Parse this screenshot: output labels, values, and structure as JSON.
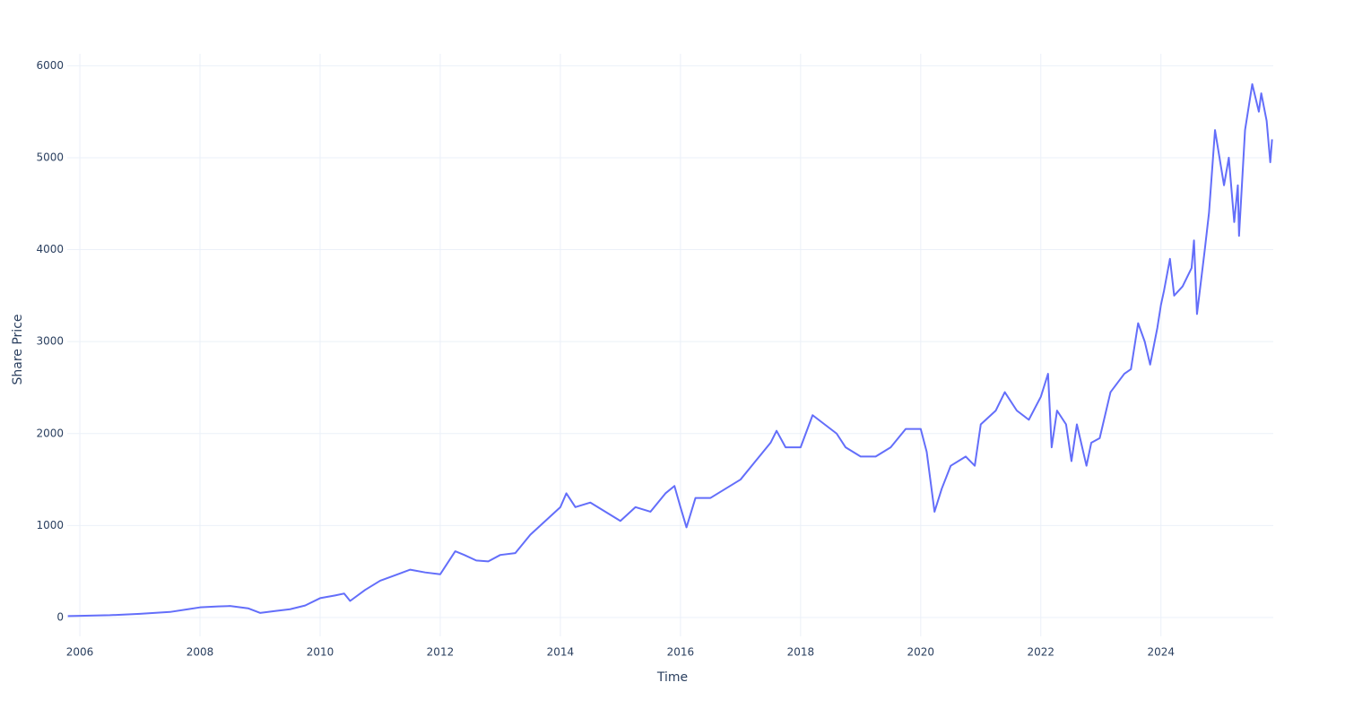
{
  "chart_data": {
    "type": "line",
    "x_label": "Time",
    "y_label": "Share Price",
    "xlim": [
      2005.79,
      2025.87
    ],
    "ylim": [
      -205,
      6130
    ],
    "xticks": [
      2006,
      2008,
      2010,
      2012,
      2014,
      2016,
      2018,
      2020,
      2022,
      2024
    ],
    "yticks": [
      0,
      1000,
      2000,
      3000,
      4000,
      5000,
      6000
    ],
    "grid": true,
    "series": [
      {
        "color": "#636efa",
        "x": [
          2005.8,
          2006.0,
          2006.5,
          2007.0,
          2007.5,
          2007.8,
          2008.0,
          2008.3,
          2008.5,
          2008.8,
          2009.0,
          2009.25,
          2009.5,
          2009.75,
          2010.0,
          2010.25,
          2010.4,
          2010.5,
          2010.75,
          2011.0,
          2011.25,
          2011.5,
          2011.75,
          2012.0,
          2012.25,
          2012.4,
          2012.6,
          2012.8,
          2013.0,
          2013.25,
          2013.5,
          2013.75,
          2014.0,
          2014.1,
          2014.25,
          2014.5,
          2014.75,
          2015.0,
          2015.25,
          2015.5,
          2015.75,
          2015.9,
          2016.0,
          2016.1,
          2016.25,
          2016.5,
          2016.75,
          2017.0,
          2017.25,
          2017.5,
          2017.6,
          2017.75,
          2018.0,
          2018.2,
          2018.4,
          2018.6,
          2018.75,
          2019.0,
          2019.25,
          2019.5,
          2019.75,
          2020.0,
          2020.1,
          2020.23,
          2020.35,
          2020.5,
          2020.75,
          2020.9,
          2021.0,
          2021.25,
          2021.4,
          2021.6,
          2021.8,
          2022.0,
          2022.12,
          2022.18,
          2022.27,
          2022.42,
          2022.51,
          2022.6,
          2022.76,
          2022.84,
          2022.98,
          2023.16,
          2023.39,
          2023.5,
          2023.62,
          2023.73,
          2023.82,
          2023.94,
          2024.0,
          2024.05,
          2024.15,
          2024.22,
          2024.36,
          2024.51,
          2024.55,
          2024.6,
          2024.73,
          2024.8,
          2024.9,
          2025.05,
          2025.13,
          2025.22,
          2025.28,
          2025.3,
          2025.4,
          2025.52,
          2025.63,
          2025.67,
          2025.76,
          2025.82,
          2025.85
        ],
        "values": [
          15,
          18,
          25,
          40,
          60,
          90,
          110,
          120,
          125,
          100,
          50,
          70,
          90,
          130,
          210,
          240,
          260,
          180,
          300,
          400,
          460,
          520,
          490,
          470,
          720,
          680,
          620,
          610,
          680,
          700,
          900,
          1050,
          1200,
          1350,
          1200,
          1250,
          1150,
          1050,
          1200,
          1150,
          1350,
          1430,
          1200,
          980,
          1300,
          1300,
          1400,
          1500,
          1700,
          1900,
          2030,
          1850,
          1850,
          2200,
          2100,
          2000,
          1850,
          1750,
          1750,
          1850,
          2050,
          2050,
          1800,
          1150,
          1400,
          1650,
          1750,
          1650,
          2100,
          2250,
          2450,
          2250,
          2150,
          2400,
          2650,
          1850,
          2250,
          2100,
          1700,
          2100,
          1650,
          1900,
          1950,
          2450,
          2650,
          2700,
          3200,
          3000,
          2750,
          3150,
          3400,
          3550,
          3900,
          3500,
          3600,
          3800,
          4100,
          3300,
          4000,
          4400,
          5300,
          4700,
          5000,
          4300,
          4700,
          4150,
          5300,
          5800,
          5500,
          5700,
          5400,
          4950,
          5200
        ]
      }
    ]
  }
}
